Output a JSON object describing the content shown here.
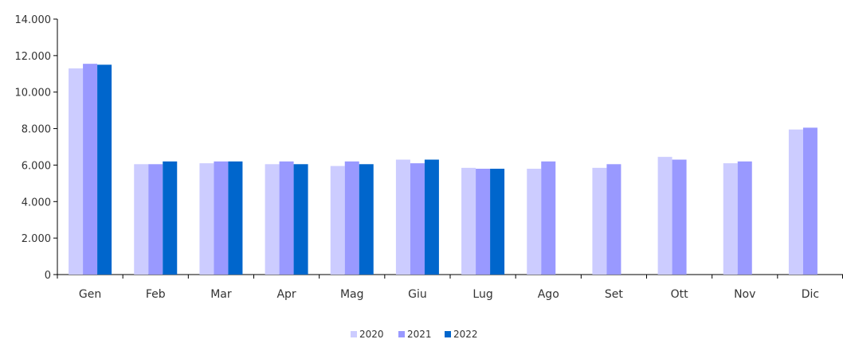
{
  "chart_data": {
    "type": "bar",
    "title": "",
    "xlabel": "",
    "ylabel": "",
    "ylim": [
      0,
      14000
    ],
    "yticks": [
      0,
      2000,
      4000,
      6000,
      8000,
      10000,
      12000,
      14000
    ],
    "ytick_labels": [
      "0",
      "2.000",
      "4.000",
      "6.000",
      "8.000",
      "10.000",
      "12.000",
      "14.000"
    ],
    "grid": false,
    "legend_position": "bottom-center",
    "categories": [
      "Gen",
      "Feb",
      "Mar",
      "Apr",
      "Mag",
      "Giu",
      "Lug",
      "Ago",
      "Set",
      "Ott",
      "Nov",
      "Dic"
    ],
    "series": [
      {
        "name": "2020",
        "color": "#ccccff",
        "values": [
          11300,
          6050,
          6100,
          6050,
          5950,
          6300,
          5850,
          5800,
          5850,
          6450,
          6100,
          7950
        ]
      },
      {
        "name": "2021",
        "color": "#9999ff",
        "values": [
          11550,
          6050,
          6200,
          6200,
          6200,
          6100,
          5800,
          6200,
          6050,
          6300,
          6200,
          8050
        ]
      },
      {
        "name": "2022",
        "color": "#0066cc",
        "values": [
          11500,
          6200,
          6200,
          6050,
          6050,
          6300,
          5800,
          null,
          null,
          null,
          null,
          null
        ]
      }
    ]
  }
}
